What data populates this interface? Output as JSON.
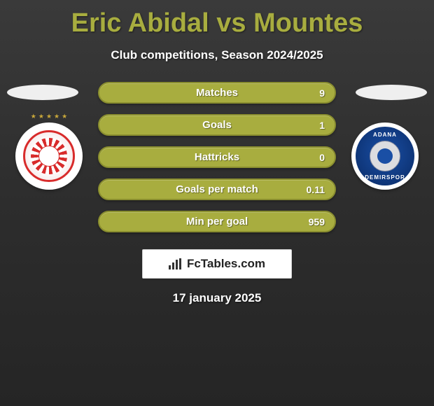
{
  "title": "Eric Abidal vs Mountes",
  "subtitle": "Club competitions, Season 2024/2025",
  "date": "17 january 2025",
  "branding_text": "FcTables.com",
  "colors": {
    "bar_fill": "#a8ad3f",
    "bar_border": "#8a8e2f",
    "title_color": "#a8ad3f",
    "text_color": "#ffffff",
    "background_top": "#3a3a3a",
    "background_bottom": "#252525"
  },
  "bars": [
    {
      "label": "Matches",
      "value": "9"
    },
    {
      "label": "Goals",
      "value": "1"
    },
    {
      "label": "Hattricks",
      "value": "0"
    },
    {
      "label": "Goals per match",
      "value": "0.11"
    },
    {
      "label": "Min per goal",
      "value": "959"
    }
  ],
  "badge_right": {
    "arc_top": "ADANA",
    "arc_bot": "DEMIRSPOR"
  }
}
